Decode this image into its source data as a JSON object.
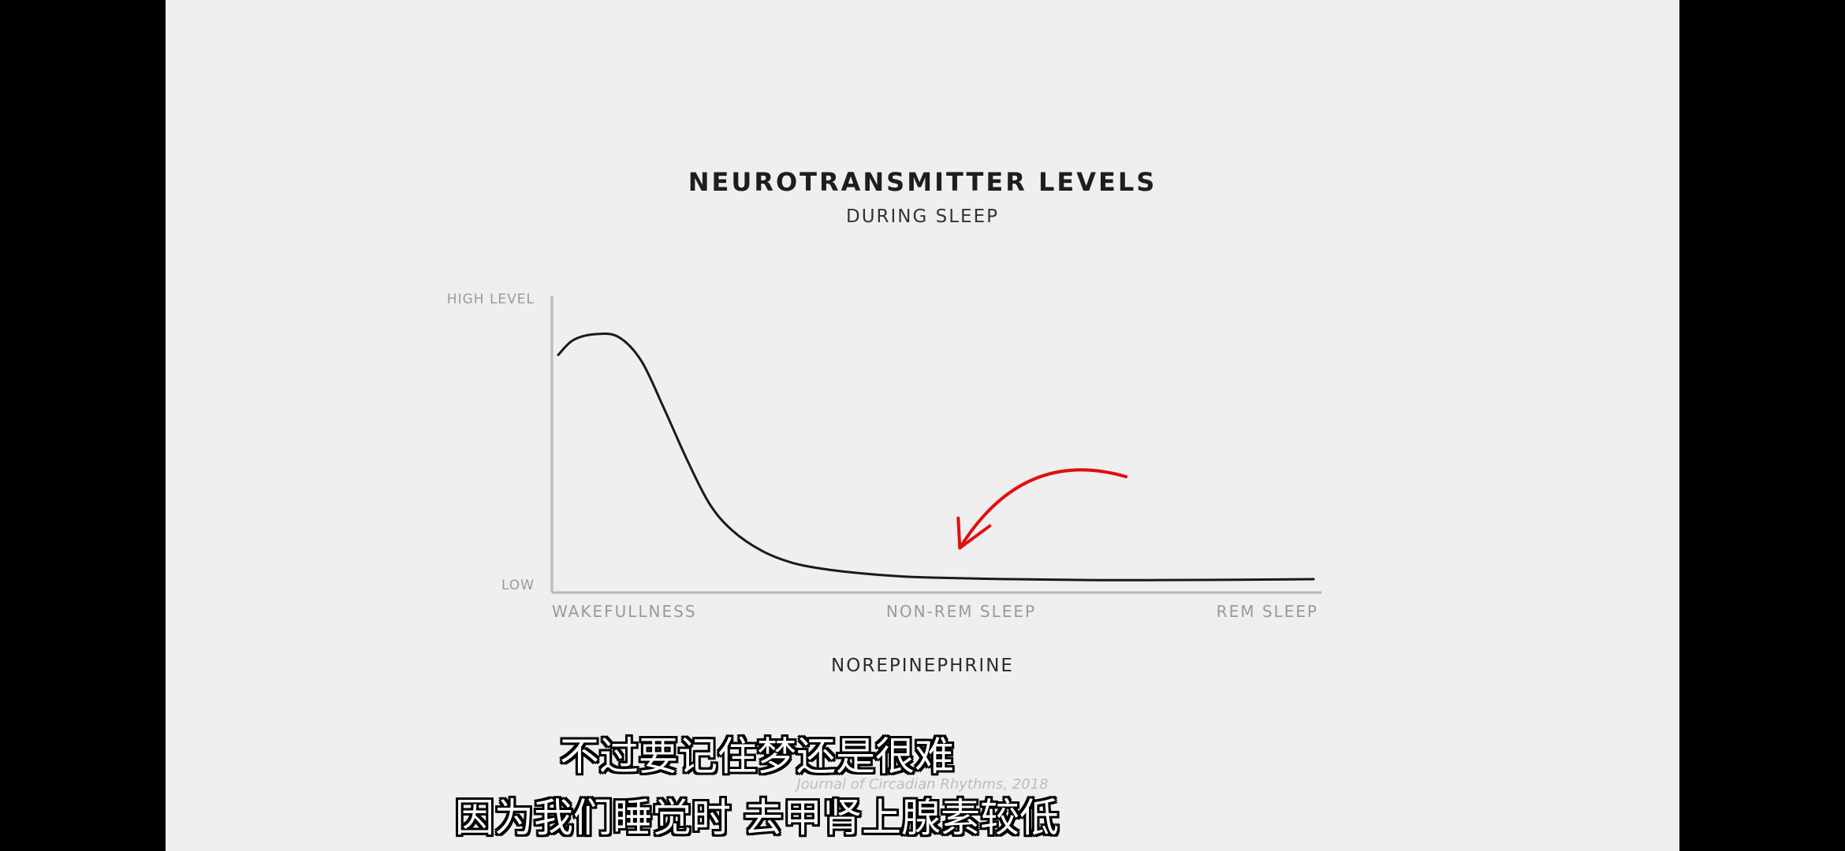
{
  "chart_data": {
    "type": "line",
    "title": "NEUROTRANSMITTER LEVELS",
    "subtitle": "DURING SLEEP",
    "y_tick_labels": [
      "HIGH LEVEL",
      "LOW"
    ],
    "x_tick_labels": [
      "WAKEFULLNESS",
      "NON-REM SLEEP",
      "REM SLEEP"
    ],
    "x_range": [
      0,
      1
    ],
    "y_range": [
      0,
      1
    ],
    "grid": false,
    "series": [
      {
        "name": "NOREPINEPHRINE",
        "color": "#1a1a1a",
        "x": [
          0.0,
          0.02,
          0.05,
          0.08,
          0.11,
          0.14,
          0.17,
          0.2,
          0.23,
          0.27,
          0.31,
          0.35,
          0.4,
          0.45,
          0.5,
          0.6,
          0.7,
          0.8,
          0.9,
          1.0
        ],
        "y": [
          0.8,
          0.85,
          0.87,
          0.86,
          0.78,
          0.62,
          0.45,
          0.3,
          0.21,
          0.14,
          0.1,
          0.08,
          0.065,
          0.055,
          0.05,
          0.045,
          0.042,
          0.042,
          0.043,
          0.045
        ]
      }
    ],
    "annotation": {
      "type": "arrow",
      "color": "#e01010",
      "from": [
        0.76,
        0.39
      ],
      "to": [
        0.54,
        0.15
      ]
    },
    "source": "Journal of Circadian Rhythms, 2018"
  },
  "subtitles": {
    "line1": "不过要记住梦还是很难",
    "line2": "因为我们睡觉时 去甲肾上腺素较低"
  }
}
